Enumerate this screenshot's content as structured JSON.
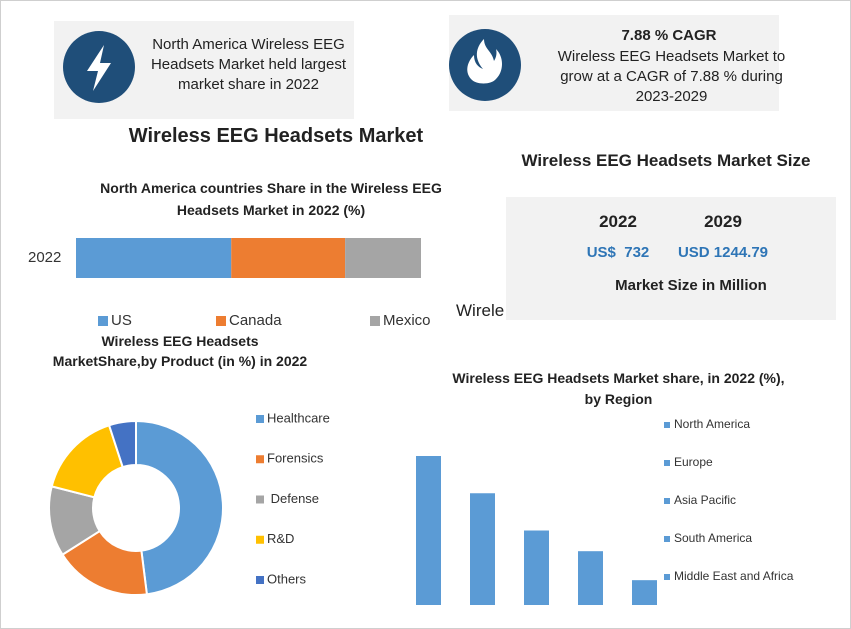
{
  "callouts": [
    {
      "text": "North America Wireless EEG Headsets Market held largest market share in 2022"
    },
    {
      "title": "7.88 % CAGR",
      "text": "Wireless EEG Headsets Market to grow at a CAGR of 7.88 % during 2023-2029"
    }
  ],
  "title": "Wireless EEG Headsets Market",
  "market_size": {
    "title": "Wireless EEG Headsets Market Size",
    "years": [
      "2022",
      "2029"
    ],
    "values": [
      "US$  732",
      "USD 1244.79"
    ],
    "note": "Market Size in Million"
  },
  "fragment": "Wirele",
  "chart_data": [
    {
      "type": "stacked_bar",
      "title": "North America countries Share in the Wireless  EEG Headsets Market in 2022 (%)",
      "categories": [
        "2022"
      ],
      "series": [
        {
          "name": "US",
          "color": "#5b9bd5",
          "values": [
            45
          ]
        },
        {
          "name": "Canada",
          "color": "#ed7d31",
          "values": [
            33
          ]
        },
        {
          "name": "Mexico",
          "color": "#a5a5a5",
          "values": [
            22
          ]
        }
      ]
    },
    {
      "type": "donut",
      "title": "Wireless EEG Headsets MarketShare,by Product  (in %) in 2022",
      "categories": [
        "Healthcare",
        "Forensics",
        " Defense",
        "R&D",
        "Others"
      ],
      "values": [
        48,
        18,
        13,
        16,
        5
      ],
      "colors": [
        "#5b9bd5",
        "#ed7d31",
        "#a5a5a5",
        "#ffc000",
        "#4472c4"
      ]
    },
    {
      "type": "bar",
      "title": "Wireless EEG Headsets Market share, in 2022 (%), by Region",
      "categories": [
        "North America",
        "Europe",
        "Asia Pacific",
        "South America",
        "Middle East and Africa"
      ],
      "values": [
        36,
        27,
        18,
        13,
        6
      ],
      "color": "#5b9bd5"
    }
  ]
}
